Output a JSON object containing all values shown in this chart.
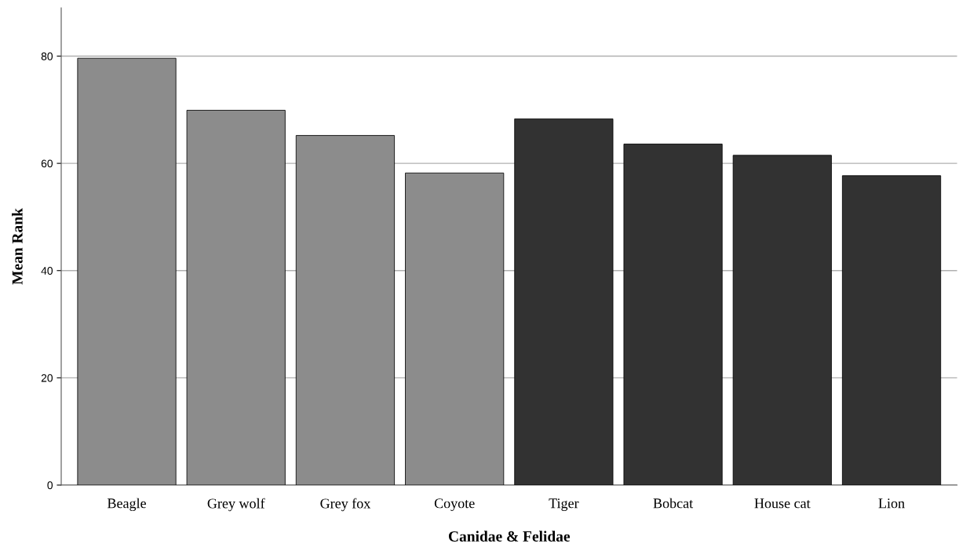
{
  "chart_data": {
    "type": "bar",
    "xlabel": "Canidae & Felidae",
    "ylabel": "Mean Rank",
    "categories": [
      "Beagle",
      "Grey wolf",
      "Grey fox",
      "Coyote",
      "Tiger",
      "Bobcat",
      "House cat",
      "Lion"
    ],
    "values": [
      79.6,
      69.9,
      65.2,
      58.2,
      68.3,
      63.6,
      61.5,
      57.7
    ],
    "colors": [
      "#8c8c8c",
      "#8c8c8c",
      "#8c8c8c",
      "#8c8c8c",
      "#323232",
      "#323232",
      "#323232",
      "#323232"
    ],
    "ylim": [
      0,
      89
    ],
    "yticks": [
      0,
      20,
      40,
      60,
      80
    ],
    "grid": "y",
    "legend": false
  }
}
